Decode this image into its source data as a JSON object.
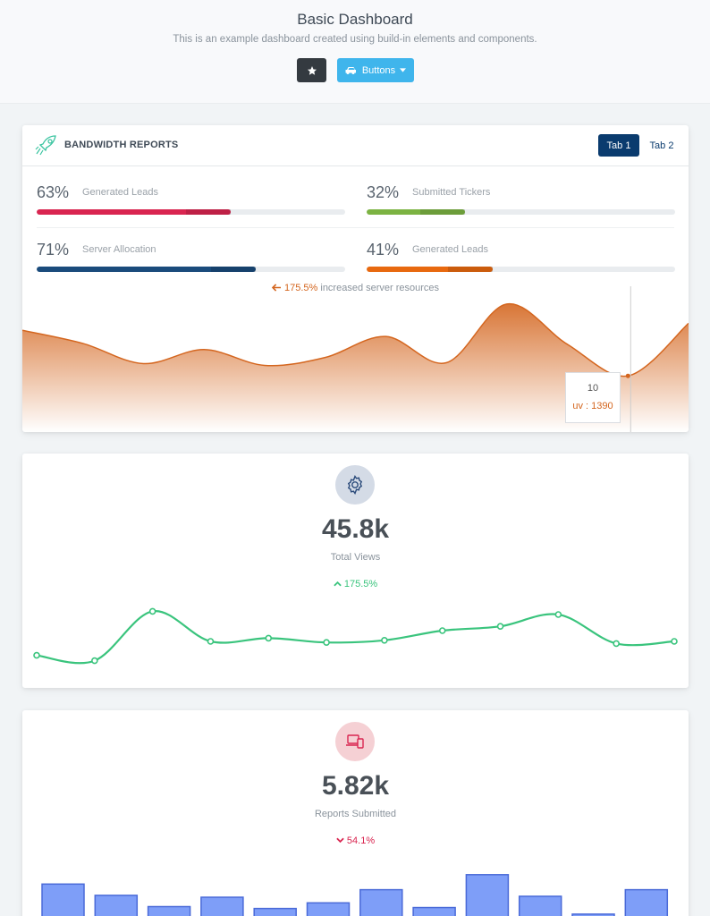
{
  "header": {
    "title": "Basic Dashboard",
    "subtitle": "This is an example dashboard created using build-in elements and components.",
    "star_icon": "star-icon",
    "buttons_label": "Buttons",
    "buttons_icon": "car-icon"
  },
  "bandwidth": {
    "title": "BANDWIDTH REPORTS",
    "icon": "rocket-icon",
    "tabs": [
      {
        "label": "Tab 1",
        "active": true
      },
      {
        "label": "Tab 2",
        "active": false
      }
    ],
    "progress": [
      {
        "percent": "63%",
        "value": 63,
        "label": "Generated Leads",
        "color": "#d92550"
      },
      {
        "percent": "32%",
        "value": 32,
        "label": "Submitted Tickers",
        "color": "#7cb342"
      },
      {
        "percent": "71%",
        "value": 71,
        "label": "Server Allocation",
        "color": "#1a4b7c"
      },
      {
        "percent": "41%",
        "value": 41,
        "label": "Generated Leads",
        "color": "#e8690f"
      }
    ],
    "note_value": "175.5%",
    "note_text": " increased server resources",
    "tooltip": {
      "label": "10",
      "value": "uv : 1390"
    },
    "accent": "#d4661f"
  },
  "views": {
    "icon": "gear-icon",
    "value": "45.8k",
    "label": "Total Views",
    "delta": "175.5%",
    "delta_color": "#3ac47d",
    "line_color": "#3ac47d"
  },
  "reports": {
    "icon": "devices-icon",
    "value": "5.82k",
    "label": "Reports Submitted",
    "delta": "54.1%",
    "delta_color": "#d92550",
    "bar_color": "#7e9ef8"
  },
  "chart_data": [
    {
      "type": "area",
      "series": [
        {
          "values": [
            62,
            47,
            24,
            40,
            22,
            31,
            55,
            25,
            92,
            46,
            10,
            70
          ]
        }
      ]
    },
    {
      "type": "line",
      "series": [
        {
          "values": [
            17,
            12,
            58,
            30,
            33,
            29,
            31,
            40,
            44,
            55,
            28,
            30
          ]
        }
      ]
    },
    {
      "type": "bar",
      "series": [
        {
          "values": [
            34,
            22,
            10,
            20,
            8,
            14,
            28,
            9,
            44,
            21,
            2,
            28
          ]
        }
      ]
    }
  ]
}
